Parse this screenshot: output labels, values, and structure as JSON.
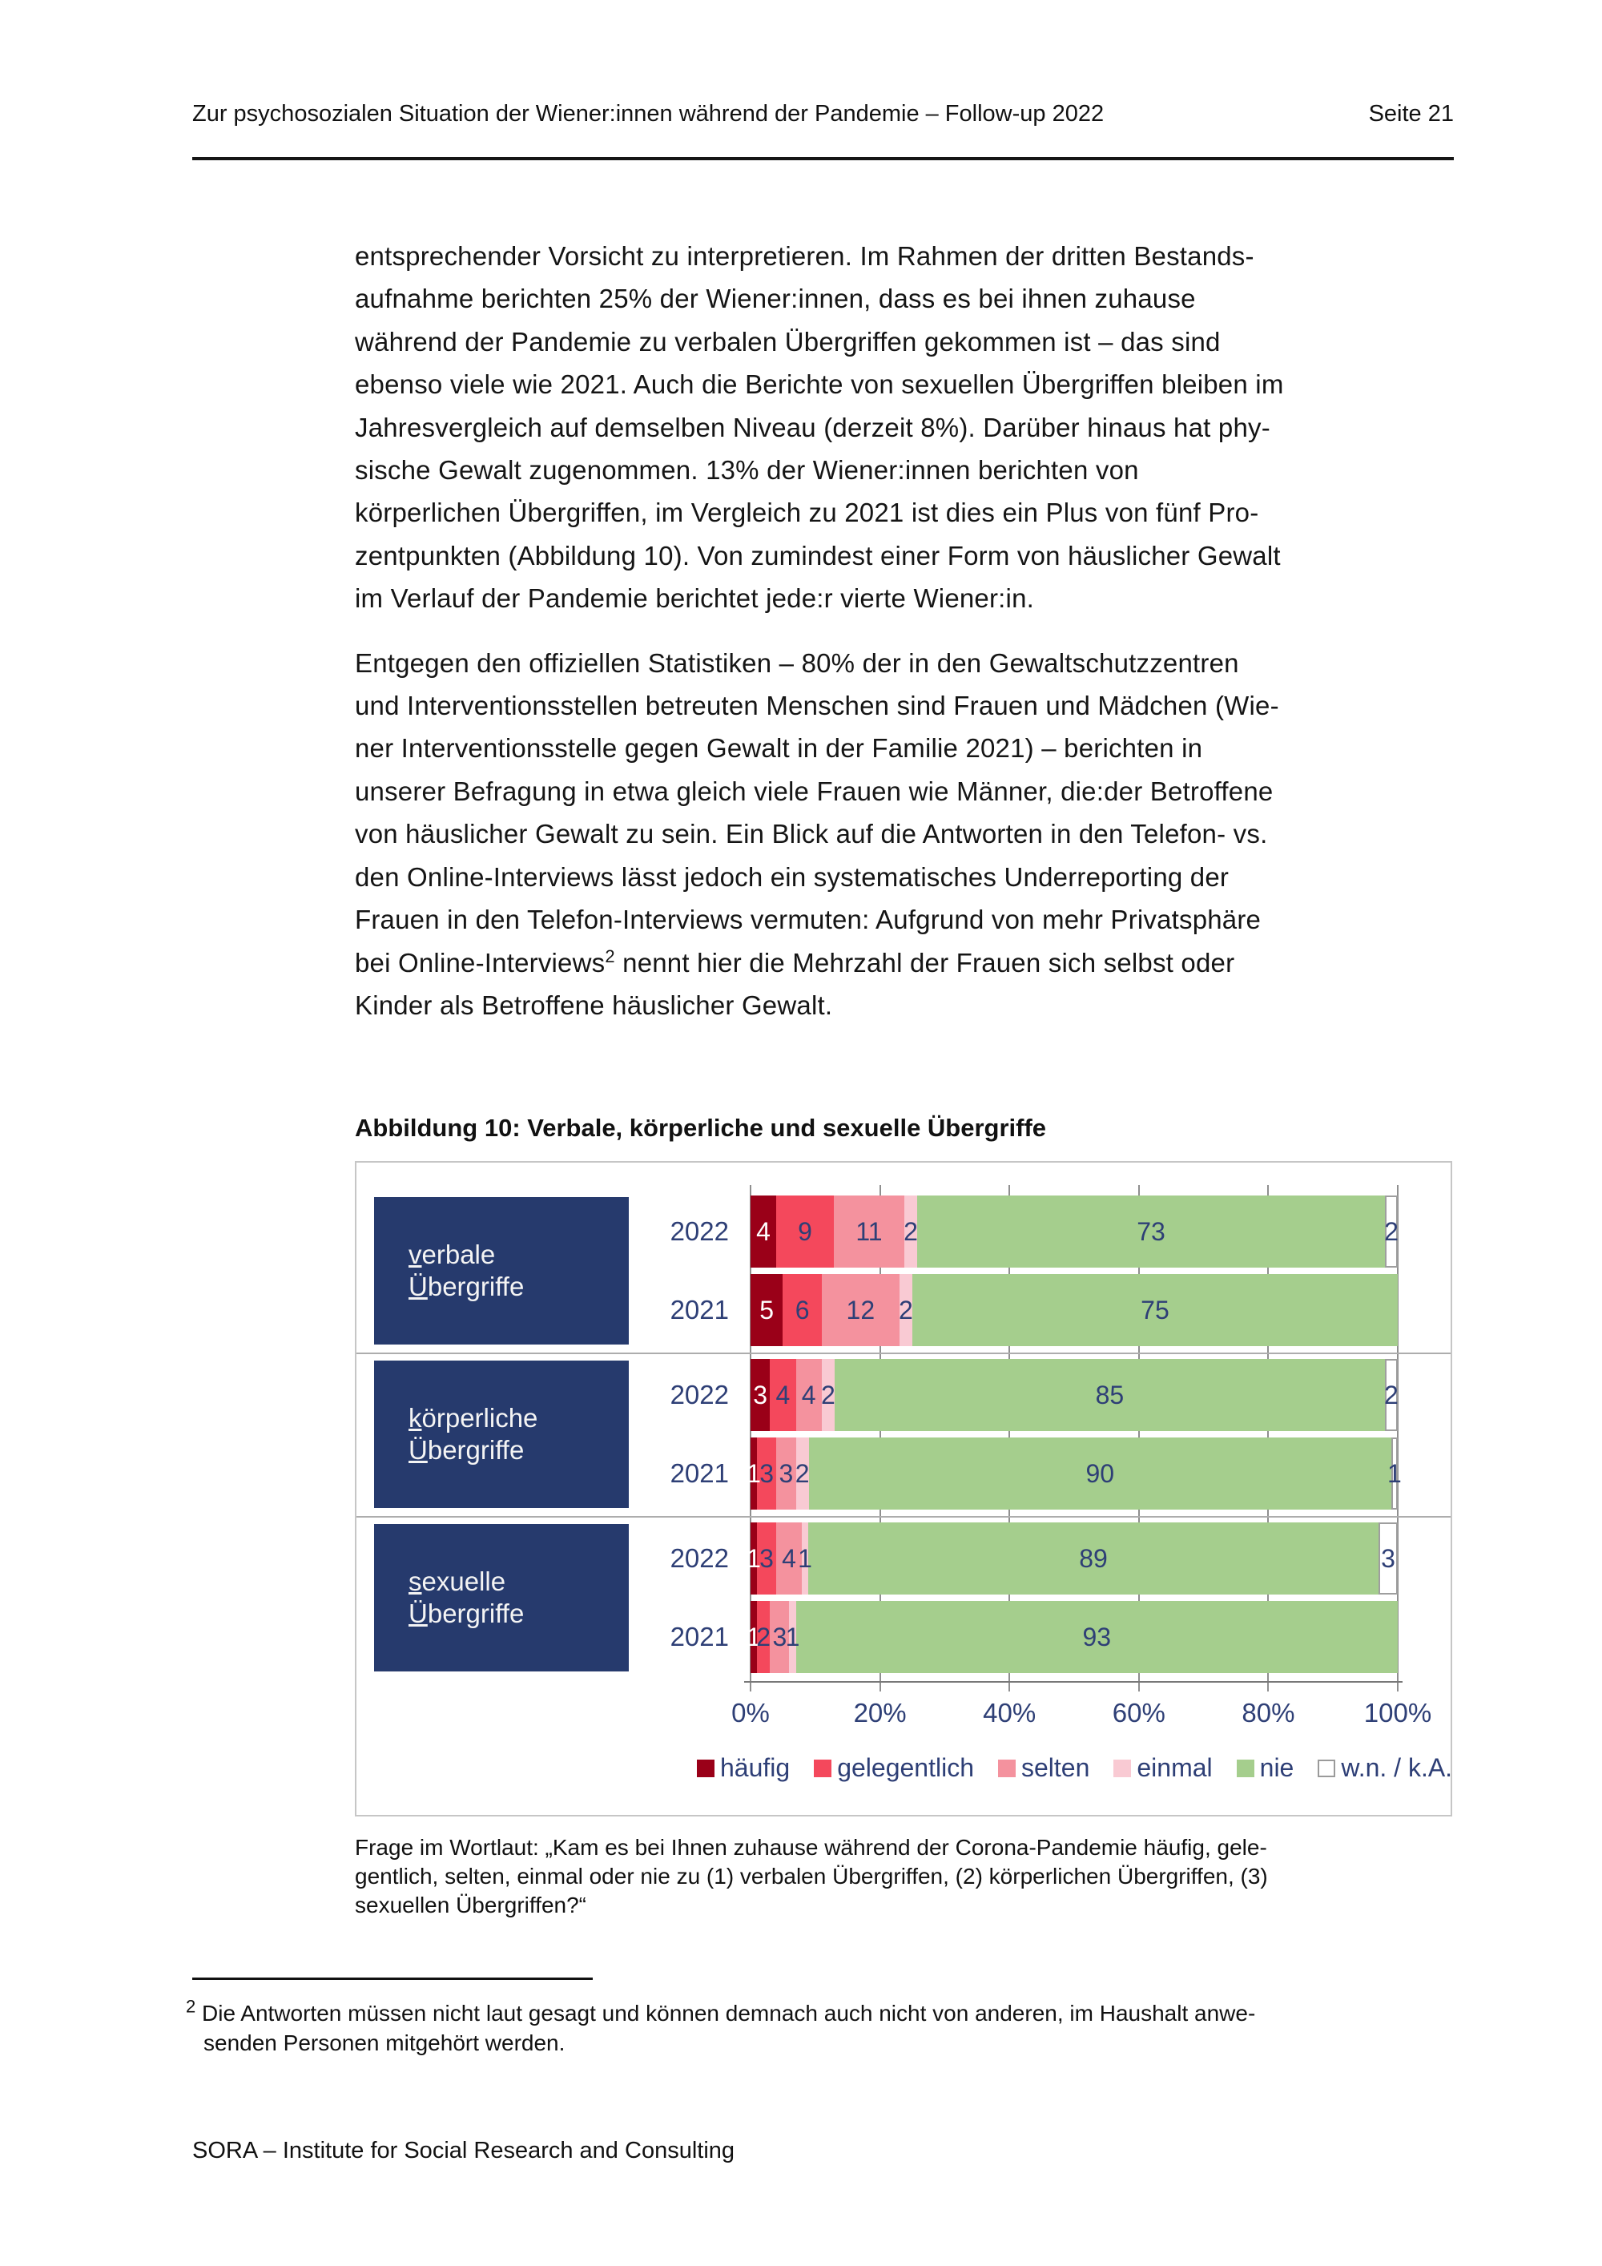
{
  "header": {
    "title": "Zur psychosozialen Situation der Wiener:innen während der Pandemie – Follow-up 2022",
    "page_label": "Seite 21"
  },
  "paragraphs": {
    "p1": [
      "entsprechender Vorsicht zu interpretieren. Im Rahmen der dritten Bestands-",
      "aufnahme berichten 25% der Wiener:innen, dass es bei ihnen zuhause",
      "während der Pandemie zu verbalen Übergriffen gekommen ist – das sind",
      "ebenso viele wie 2021. Auch die Berichte von sexuellen Übergriffen bleiben im",
      "Jahresvergleich auf demselben Niveau (derzeit 8%). Darüber hinaus hat phy-",
      "sische Gewalt zugenommen. 13% der Wiener:innen berichten von",
      "körperlichen Übergriffen, im Vergleich zu 2021 ist dies ein Plus von fünf Pro-",
      "zentpunkten (Abbildung 10). Von zumindest einer Form von häuslicher Gewalt",
      "im Verlauf der Pandemie berichtet jede:r vierte Wiener:in."
    ],
    "p2": [
      "Entgegen den offiziellen Statistiken – 80% der in den Gewaltschutzzentren",
      "und Interventionsstellen betreuten Menschen sind Frauen und Mädchen (Wie-",
      "ner Interventionsstelle gegen Gewalt in der Familie 2021) – berichten in",
      "unserer Befragung in etwa gleich viele Frauen wie Männer, die:der Betroffene",
      "von häuslicher Gewalt zu sein. Ein Blick auf die Antworten in den Telefon- vs.",
      "den Online-Interviews lässt jedoch ein systematisches Underreporting der",
      "Frauen in den Telefon-Interviews vermuten: Aufgrund von mehr Privatsphäre"
    ],
    "p2_sup_line": {
      "pre": "bei Online-Interviews",
      "sup": "2",
      "post": " nennt hier die Mehrzahl der Frauen sich selbst oder"
    },
    "p2_last": "Kinder als Betroffene häuslicher Gewalt."
  },
  "figure": {
    "title": "Abbildung 10: Verbale, körperliche und sexuelle Übergriffe",
    "caption": [
      "Frage im Wortlaut: „Kam es bei Ihnen zuhause während der Corona-Pandemie häufig, gele-",
      "gentlich, selten, einmal oder nie zu (1) verbalen Übergriffen, (2) körperlichen Übergriffen, (3)",
      "sexuellen Übergriffen?“"
    ]
  },
  "chart_data": {
    "type": "bar",
    "orientation": "horizontal",
    "stacked": true,
    "unit": "percent",
    "xlim": [
      0,
      100
    ],
    "x_ticks": [
      "0%",
      "20%",
      "40%",
      "60%",
      "80%",
      "100%"
    ],
    "series_labels": [
      "häufig",
      "gelegentlich",
      "selten",
      "einmal",
      "nie",
      "w.n. / k.A."
    ],
    "series_colors": [
      "#9a0018",
      "#f4485c",
      "#f4929e",
      "#f9cad3",
      "#a5ce8d",
      "#ffffff"
    ],
    "groups": [
      {
        "category": [
          "verbale",
          "Übergriffe"
        ],
        "bars": [
          {
            "year": "2022",
            "values": [
              4,
              9,
              11,
              2,
              73,
              2
            ]
          },
          {
            "year": "2021",
            "values": [
              5,
              6,
              12,
              2,
              75,
              0
            ]
          }
        ]
      },
      {
        "category": [
          "körperliche",
          "Übergriffe"
        ],
        "bars": [
          {
            "year": "2022",
            "values": [
              3,
              4,
              4,
              2,
              85,
              2
            ]
          },
          {
            "year": "2021",
            "values": [
              1,
              3,
              3,
              2,
              90,
              1
            ]
          }
        ]
      },
      {
        "category": [
          "sexuelle",
          "Übergriffe"
        ],
        "bars": [
          {
            "year": "2022",
            "values": [
              1,
              3,
              4,
              1,
              89,
              3
            ]
          },
          {
            "year": "2021",
            "values": [
              1,
              2,
              3,
              1,
              93,
              0
            ]
          }
        ]
      }
    ]
  },
  "footnote": {
    "sup": "2",
    "line1": " Die Antworten müssen nicht laut gesagt und können demnach auch nicht von anderen, im Haushalt anwe-",
    "line2": "senden Personen mitgehört werden."
  },
  "footer": {
    "text": "SORA – Institute for Social Research and Consulting"
  }
}
